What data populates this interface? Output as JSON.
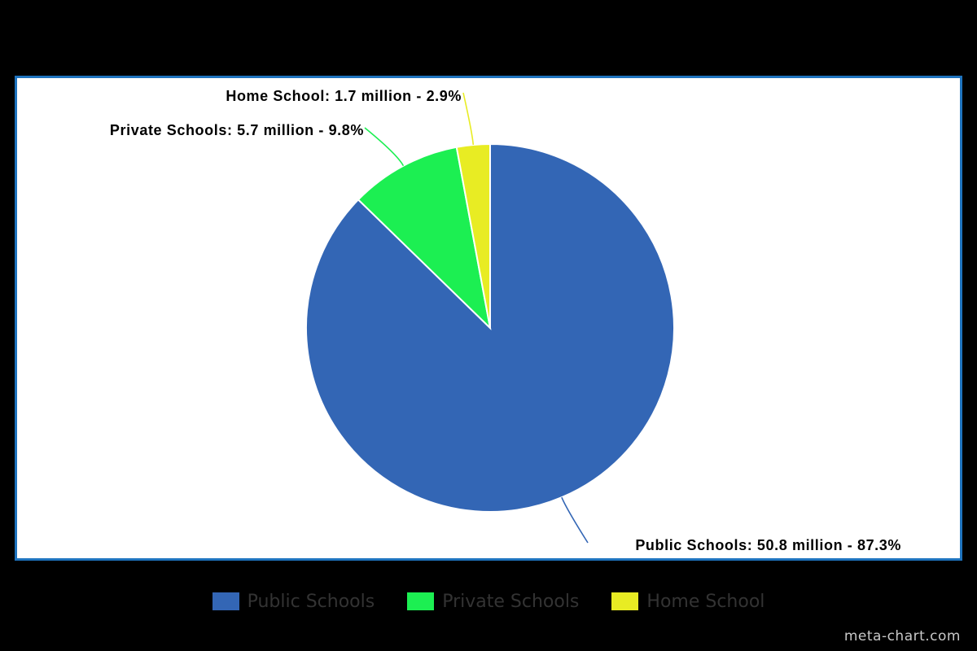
{
  "chart_data": {
    "type": "pie",
    "series": [
      {
        "name": "Public Schools",
        "value": 50.8,
        "percent": 87.3,
        "color": "#3366b5",
        "label": "Public Schools: 50.8 million - 87.3%"
      },
      {
        "name": "Private Schools",
        "value": 5.7,
        "percent": 9.8,
        "color": "#1cef52",
        "label": "Private Schools: 5.7 million - 9.8%"
      },
      {
        "name": "Home School",
        "value": 1.7,
        "percent": 2.9,
        "color": "#e8ec23",
        "label": "Home School: 1.7 million - 2.9%"
      }
    ],
    "legend": {
      "placement": "bottom",
      "items": [
        "Public Schools",
        "Private Schools",
        "Home School"
      ]
    }
  },
  "colors": {
    "background": "#000000",
    "plot_background": "#ffffff",
    "frame_border": "#1e73be",
    "legend_text": "#333333",
    "watermark_text": "#c8c8c8"
  },
  "watermark": "meta-chart.com"
}
